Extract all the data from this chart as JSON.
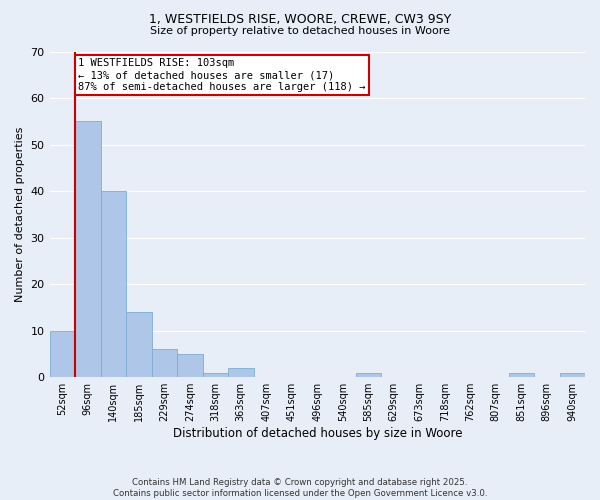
{
  "title1": "1, WESTFIELDS RISE, WOORE, CREWE, CW3 9SY",
  "title2": "Size of property relative to detached houses in Woore",
  "xlabel": "Distribution of detached houses by size in Woore",
  "ylabel": "Number of detached properties",
  "categories": [
    "52sqm",
    "96sqm",
    "140sqm",
    "185sqm",
    "229sqm",
    "274sqm",
    "318sqm",
    "363sqm",
    "407sqm",
    "451sqm",
    "496sqm",
    "540sqm",
    "585sqm",
    "629sqm",
    "673sqm",
    "718sqm",
    "762sqm",
    "807sqm",
    "851sqm",
    "896sqm",
    "940sqm"
  ],
  "values": [
    10,
    55,
    40,
    14,
    6,
    5,
    1,
    2,
    0,
    0,
    0,
    0,
    1,
    0,
    0,
    0,
    0,
    0,
    1,
    0,
    1
  ],
  "bar_color": "#aec6e8",
  "bar_edge_color": "#7aadd4",
  "ylim": [
    0,
    70
  ],
  "yticks": [
    0,
    10,
    20,
    30,
    40,
    50,
    60,
    70
  ],
  "annotation_line1": "1 WESTFIELDS RISE: 103sqm",
  "annotation_line2": "← 13% of detached houses are smaller (17)",
  "annotation_line3": "87% of semi-detached houses are larger (118) →",
  "annotation_box_color": "#ffffff",
  "annotation_box_edge_color": "#cc0000",
  "red_line_color": "#cc0000",
  "background_color": "#e8eef8",
  "grid_color": "#ffffff",
  "footer_line1": "Contains HM Land Registry data © Crown copyright and database right 2025.",
  "footer_line2": "Contains public sector information licensed under the Open Government Licence v3.0."
}
